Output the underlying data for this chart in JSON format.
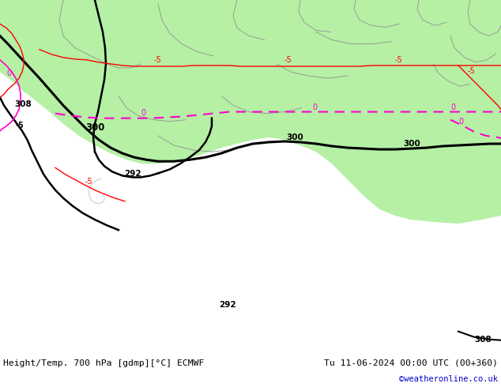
{
  "title_left": "Height/Temp. 700 hPa [gdmp][°C] ECMWF",
  "title_right": "Tu 11-06-2024 00:00 UTC (00+360)",
  "credit": "©weatheronline.co.uk",
  "land_color": "#b5f0a5",
  "sea_color": "#c8c8c8",
  "black": "#000000",
  "red": "#ff0000",
  "magenta": "#ff00cc",
  "gray": "#909090",
  "white": "#ffffff",
  "blue": "#0000cc",
  "fig_width": 6.34,
  "fig_height": 4.9,
  "dpi": 100
}
